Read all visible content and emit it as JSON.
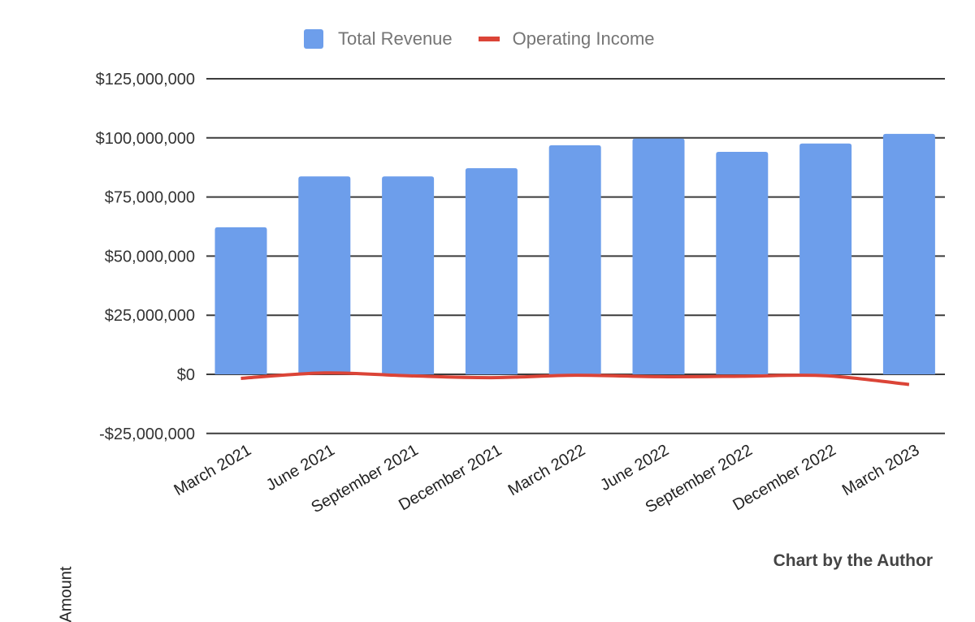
{
  "chart_data": {
    "type": "bar",
    "title": "",
    "xlabel": "",
    "ylabel": "Amount",
    "ylim": [
      -25000000,
      125000000
    ],
    "yticks": [
      -25000000,
      0,
      25000000,
      50000000,
      75000000,
      100000000,
      125000000
    ],
    "ytick_labels": [
      "-$25,000,000",
      "$0",
      "$25,000,000",
      "$50,000,000",
      "$75,000,000",
      "$100,000,000",
      "$125,000,000"
    ],
    "categories": [
      "March 2021",
      "June 2021",
      "September 2021",
      "December 2021",
      "March 2022",
      "June 2022",
      "September 2022",
      "December 2022",
      "March 2023"
    ],
    "series": [
      {
        "name": "Total Revenue",
        "type": "bar",
        "color": "#6d9eeb",
        "values": [
          62200000,
          83700000,
          83700000,
          87200000,
          96900000,
          99700000,
          94100000,
          97600000,
          101700000
        ]
      },
      {
        "name": "Operating Income",
        "type": "line",
        "color": "#db4437",
        "values": [
          -1700000,
          600000,
          -600000,
          -1400000,
          -400000,
          -1000000,
          -800000,
          -600000,
          -4300000
        ]
      }
    ],
    "legend_position": "top",
    "grid": true,
    "annotation": "Chart by the Author"
  },
  "legend": {
    "items": [
      {
        "label": "Total Revenue",
        "color": "#6d9eeb",
        "kind": "box"
      },
      {
        "label": "Operating Income",
        "color": "#db4437",
        "kind": "line"
      }
    ]
  },
  "axis": {
    "y_title": "Amount"
  },
  "footer": {
    "credit": "Chart by the Author"
  }
}
